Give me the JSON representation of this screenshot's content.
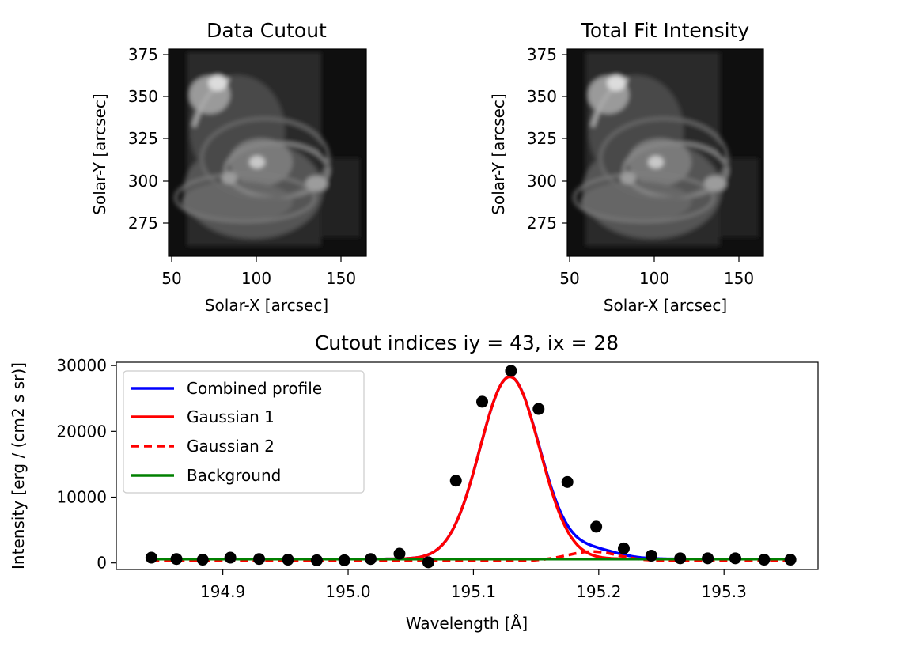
{
  "chart_data": [
    {
      "type": "heatmap",
      "title": "Data Cutout",
      "xlabel": "Solar-X [arcsec]",
      "ylabel": "Solar-Y [arcsec]",
      "xticks": [
        "50",
        "100",
        "150"
      ],
      "yticks": [
        "275",
        "300",
        "325",
        "350",
        "375"
      ],
      "xlim": [
        48,
        165
      ],
      "ylim": [
        255,
        378
      ],
      "colormap": "gray"
    },
    {
      "type": "heatmap",
      "title": "Total Fit Intensity",
      "xlabel": "Solar-X [arcsec]",
      "ylabel": "Solar-Y [arcsec]",
      "xticks": [
        "50",
        "100",
        "150"
      ],
      "yticks": [
        "275",
        "300",
        "325",
        "350",
        "375"
      ],
      "xlim": [
        48,
        165
      ],
      "ylim": [
        255,
        378
      ],
      "colormap": "gray"
    },
    {
      "type": "line",
      "title": "Cutout indices iy = 43, ix = 28",
      "xlabel": "Wavelength [Å]",
      "ylabel": "Intensity [erg / (cm2 s sr)]",
      "xlim": [
        194.815,
        195.375
      ],
      "ylim": [
        -1000,
        30500
      ],
      "xticks": [
        "194.9",
        "195.0",
        "195.1",
        "195.2",
        "195.3"
      ],
      "yticks": [
        "0",
        "10000",
        "20000",
        "30000"
      ],
      "legend_position": "upper left",
      "grid": false,
      "series": [
        {
          "name": "Combined profile",
          "color": "#0000ff",
          "style": "solid",
          "model": {
            "amp1": 27700,
            "mu1": 195.129,
            "sigma1": 0.0238,
            "amp2": 1400,
            "mu2": 195.195,
            "sigma2": 0.02,
            "bg": 600
          }
        },
        {
          "name": "Gaussian 1",
          "color": "#ff0000",
          "style": "solid",
          "model": {
            "amp": 27700,
            "mu": 195.129,
            "sigma": 0.0238,
            "bg": 600
          }
        },
        {
          "name": "Gaussian 2",
          "color": "#ff0000",
          "style": "dashed",
          "model": {
            "amp": 1400,
            "mu": 195.195,
            "sigma": 0.02,
            "bg": 600
          }
        },
        {
          "name": "Background",
          "color": "#008000",
          "style": "solid",
          "value": 600
        }
      ],
      "points": {
        "x": [
          194.843,
          194.863,
          194.884,
          194.906,
          194.929,
          194.952,
          194.975,
          194.997,
          195.018,
          195.041,
          195.064,
          195.086,
          195.107,
          195.13,
          195.152,
          195.175,
          195.198,
          195.22,
          195.242,
          195.265,
          195.287,
          195.309,
          195.332,
          195.353
        ],
        "y": [
          800,
          600,
          500,
          800,
          600,
          500,
          400,
          400,
          600,
          1400,
          100,
          12500,
          24500,
          29200,
          23400,
          12300,
          5500,
          2200,
          1100,
          700,
          700,
          700,
          500,
          500
        ]
      }
    }
  ]
}
